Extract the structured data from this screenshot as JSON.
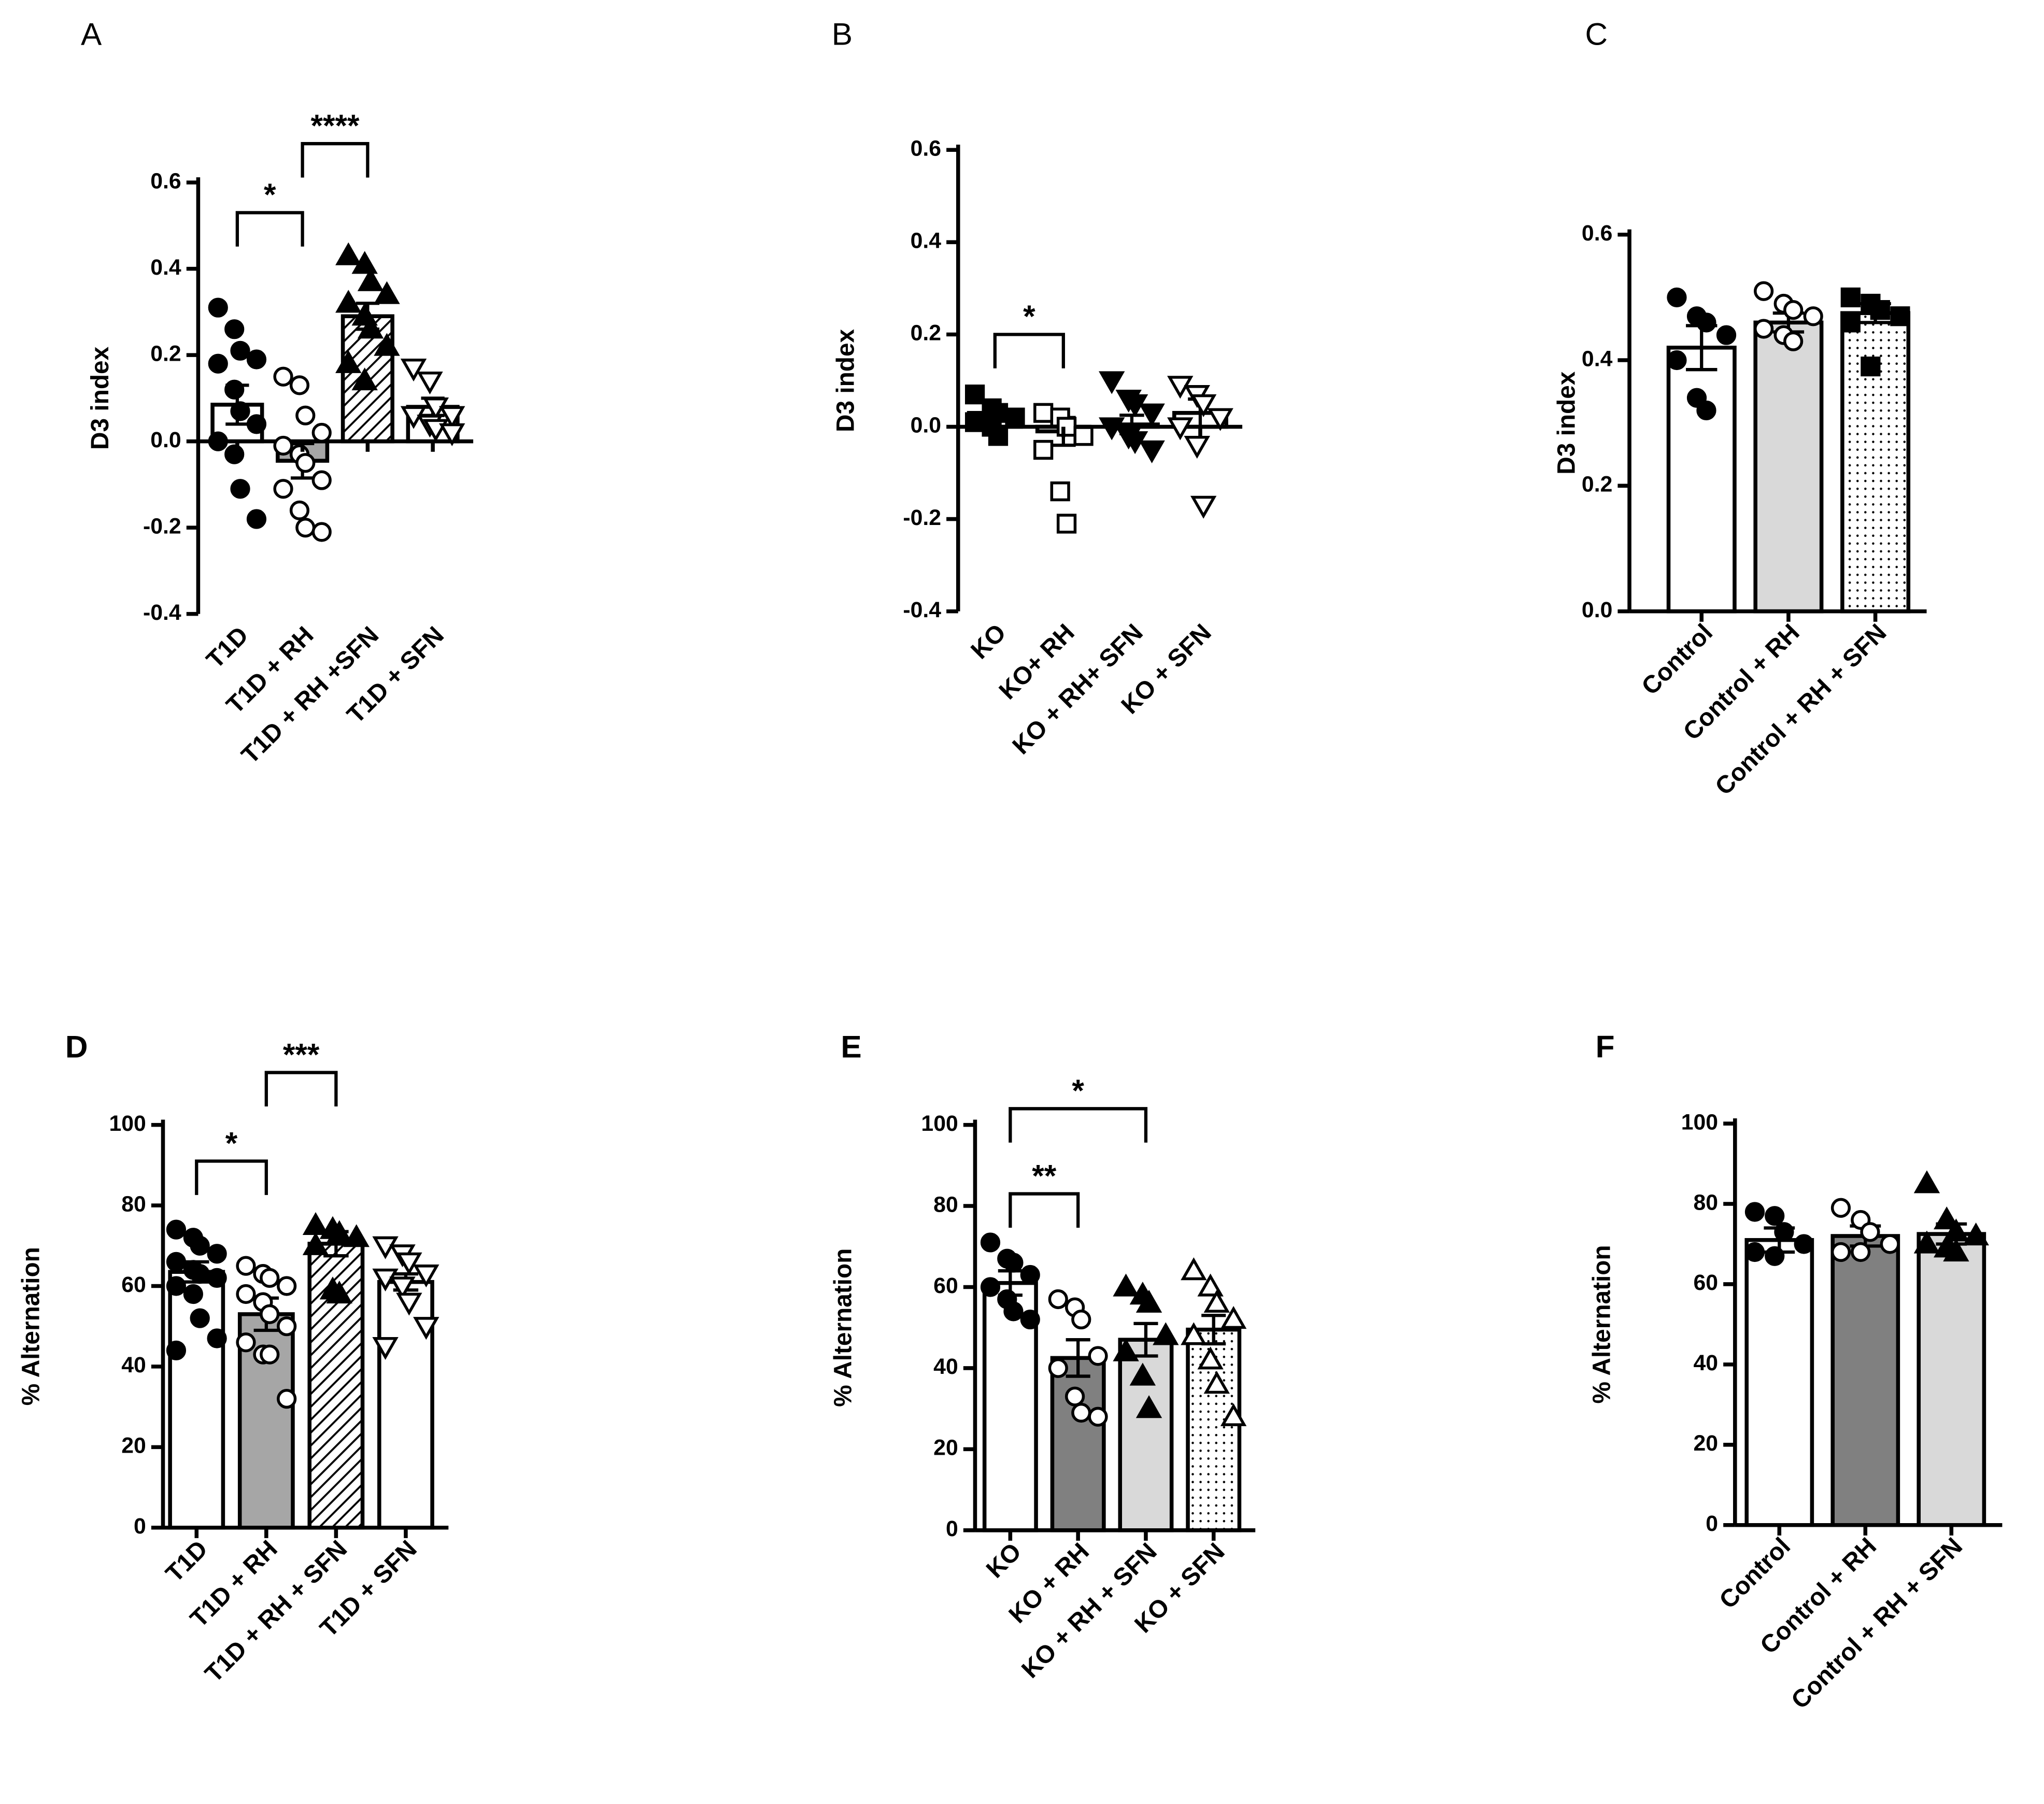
{
  "chart_data": [
    {
      "type": "bar",
      "panel": "A",
      "ylabel": "D3 index",
      "categories": [
        "T1D",
        "T1D + RH",
        "T1D + RH +SFN",
        "T1D + SFN"
      ],
      "values": [
        0.085,
        -0.045,
        0.29,
        0.08
      ],
      "errors": [
        0.045,
        0.04,
        0.03,
        0.02
      ],
      "points": [
        [
          0.31,
          0.26,
          0.21,
          0.19,
          0.18,
          0.12,
          0.07,
          0.04,
          0.0,
          -0.03,
          -0.11,
          -0.18
        ],
        [
          0.15,
          0.13,
          0.06,
          0.02,
          -0.01,
          -0.03,
          -0.05,
          -0.09,
          -0.11,
          -0.16,
          -0.2,
          -0.21
        ],
        [
          0.43,
          0.41,
          0.37,
          0.34,
          0.32,
          0.29,
          0.26,
          0.22,
          0.18,
          0.14
        ],
        [
          0.17,
          0.14,
          0.08,
          0.06,
          0.06,
          0.04,
          0.03,
          0.02
        ]
      ],
      "fills": [
        "#ffffff",
        "#a6a6a6",
        "hatch",
        "#ffffff"
      ],
      "markers": [
        "circle-filled",
        "circle-open",
        "triangle-filled",
        "down-open"
      ],
      "ylim": [
        -0.4,
        0.6
      ],
      "yticks": [
        0.6,
        0.4,
        0.2,
        {
          "value": 0,
          "label": "0.0"
        },
        -0.2,
        -0.4
      ],
      "brackets": [
        {
          "between": [
            0,
            1
          ],
          "y": 0.53,
          "label": "*"
        },
        {
          "between": [
            1,
            2
          ],
          "y": 0.69,
          "label": "****"
        }
      ]
    },
    {
      "type": "bar",
      "panel": "B",
      "ylabel": "D3 index",
      "categories": [
        "KO",
        "KO+ RH",
        "KO + RH+ SFN",
        "KO + SFN"
      ],
      "values": [
        0.03,
        -0.01,
        0.005,
        0.03
      ],
      "errors": [
        0.015,
        0.03,
        0.02,
        0.03
      ],
      "points": [
        [
          0.07,
          0.04,
          0.03,
          0.02,
          0.01,
          0.0,
          -0.02
        ],
        [
          0.03,
          0.02,
          0.0,
          -0.02,
          -0.05,
          -0.14,
          -0.21
        ],
        [
          0.1,
          0.06,
          0.05,
          0.03,
          0.0,
          -0.02,
          -0.03,
          -0.05
        ],
        [
          0.09,
          0.07,
          0.05,
          0.02,
          0.0,
          -0.04,
          -0.17
        ]
      ],
      "fills": [
        "#ffffff",
        "#ffffff",
        "#ffffff",
        "#ffffff"
      ],
      "markers": [
        "square-filled",
        "square-open",
        "down-filled",
        "down-open"
      ],
      "ylim": [
        -0.4,
        0.6
      ],
      "yticks": [
        0.6,
        0.4,
        0.2,
        {
          "value": 0,
          "label": "0.0"
        },
        -0.2,
        -0.4
      ],
      "brackets": [
        {
          "between": [
            0,
            1
          ],
          "y": 0.2,
          "label": "*"
        }
      ]
    },
    {
      "type": "bar",
      "panel": "C",
      "ylabel": "D3 index",
      "categories": [
        "Control",
        "Control + RH",
        "Control + RH + SFN"
      ],
      "values": [
        0.42,
        0.46,
        0.475
      ],
      "errors": [
        0.035,
        0.015,
        0.015
      ],
      "points": [
        [
          0.5,
          0.47,
          0.46,
          0.44,
          0.4,
          0.34,
          0.32
        ],
        [
          0.51,
          0.49,
          0.48,
          0.47,
          0.45,
          0.44,
          0.43
        ],
        [
          0.5,
          0.49,
          0.48,
          0.47,
          0.46,
          0.39
        ]
      ],
      "fills": [
        "#ffffff",
        "#d9d9d9",
        "dots"
      ],
      "markers": [
        "circle-filled",
        "circle-open",
        "square-filled"
      ],
      "ylim": [
        0,
        0.6
      ],
      "yticks": [
        0.6,
        0.4,
        0.2,
        {
          "value": 0,
          "label": "0.0"
        }
      ],
      "brackets": []
    },
    {
      "type": "bar",
      "panel": "D",
      "ylabel": "% Alternation",
      "categories": [
        "T1D",
        "T1D + RH",
        "T1D + RH + SFN",
        "T1D + SFN"
      ],
      "values": [
        63.5,
        53,
        70.5,
        61
      ],
      "errors": [
        2.5,
        4,
        3,
        2
      ],
      "points": [
        [
          74,
          72,
          70,
          68,
          66,
          64,
          63,
          62,
          60,
          58,
          52,
          47,
          44
        ],
        [
          65,
          63,
          62,
          60,
          58,
          56,
          53,
          50,
          46,
          43,
          43,
          32
        ],
        [
          75,
          74,
          73,
          72,
          70,
          59,
          58
        ],
        [
          70,
          68,
          66,
          63,
          62,
          60,
          56,
          50,
          45
        ]
      ],
      "fills": [
        "#ffffff",
        "#a6a6a6",
        "hatch",
        "#ffffff"
      ],
      "markers": [
        "circle-filled",
        "circle-open",
        "triangle-filled",
        "down-open"
      ],
      "ylim": [
        0,
        100
      ],
      "yticks": [
        100,
        80,
        60,
        40,
        20,
        0
      ],
      "brackets": [
        {
          "between": [
            0,
            1
          ],
          "y": 91,
          "label": "*"
        },
        {
          "between": [
            1,
            2
          ],
          "y": 113,
          "label": "***"
        }
      ]
    },
    {
      "type": "bar",
      "panel": "E",
      "ylabel": "% Alternation",
      "categories": [
        "KO",
        "KO + RH",
        "KO + RH + SFN",
        "KO + SFN"
      ],
      "values": [
        61,
        42.5,
        47,
        49.5
      ],
      "errors": [
        3,
        4.5,
        4,
        3.5
      ],
      "points": [
        [
          71,
          67,
          66,
          63,
          60,
          57,
          54,
          52
        ],
        [
          57,
          55,
          52,
          43,
          40,
          33,
          29,
          28
        ],
        [
          60,
          58,
          56,
          48,
          44,
          38,
          30
        ],
        [
          64,
          60,
          56,
          52,
          48,
          42,
          36,
          28
        ]
      ],
      "fills": [
        "#ffffff",
        "#808080",
        "#d9d9d9",
        "dots"
      ],
      "markers": [
        "circle-filled",
        "circle-open",
        "triangle-filled",
        "triangle-open"
      ],
      "ylim": [
        0,
        100
      ],
      "yticks": [
        100,
        80,
        60,
        40,
        20,
        0
      ],
      "brackets": [
        {
          "between": [
            0,
            1
          ],
          "y": 83,
          "label": "**"
        },
        {
          "between": [
            0,
            2
          ],
          "y": 104,
          "label": "*"
        }
      ]
    },
    {
      "type": "bar",
      "panel": "F",
      "ylabel": "% Alternation",
      "categories": [
        "Control",
        "Control + RH",
        "Control + RH + SFN"
      ],
      "values": [
        71,
        72,
        72.5
      ],
      "errors": [
        3,
        2.5,
        2.5
      ],
      "points": [
        [
          78,
          77,
          73,
          70,
          68,
          67
        ],
        [
          79,
          76,
          73,
          70,
          68,
          68
        ],
        [
          85,
          76,
          73,
          72,
          70,
          69,
          68
        ]
      ],
      "fills": [
        "#ffffff",
        "#808080",
        "#d9d9d9"
      ],
      "markers": [
        "circle-filled",
        "circle-open",
        "triangle-filled"
      ],
      "ylim": [
        0,
        100
      ],
      "yticks": [
        100,
        80,
        60,
        40,
        20,
        0
      ],
      "brackets": []
    }
  ]
}
